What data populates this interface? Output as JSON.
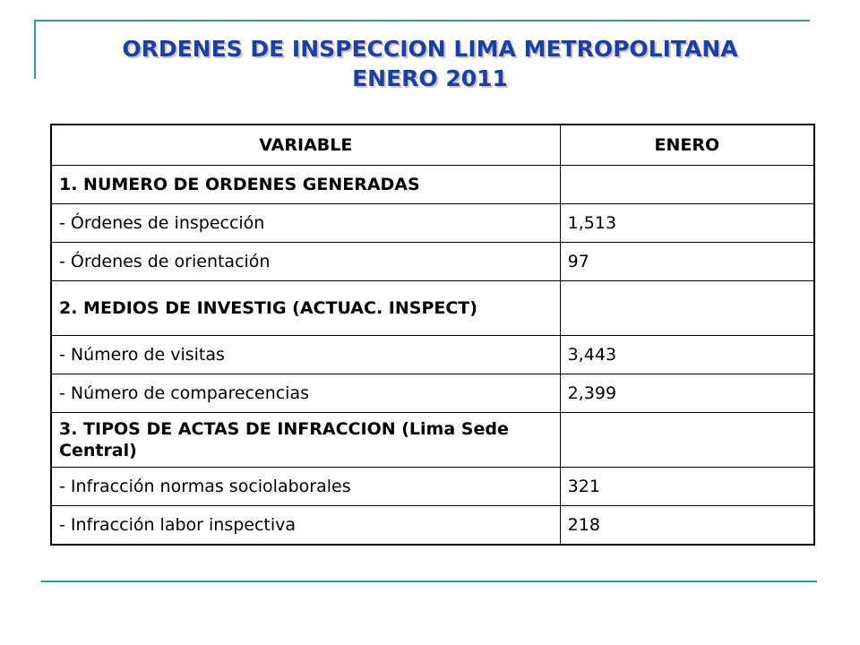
{
  "title": {
    "line1": "ORDENES DE INSPECCION LIMA METROPOLITANA",
    "line2": "ENERO 2011"
  },
  "table": {
    "headers": [
      "VARIABLE",
      "ENERO"
    ],
    "rows": [
      {
        "variable": "1. NUMERO DE ORDENES GENERADAS",
        "enero": "",
        "section": true
      },
      {
        "variable": "- Órdenes de inspección",
        "enero": "1,513",
        "section": false
      },
      {
        "variable": "- Órdenes de orientación",
        "enero": "97",
        "section": false
      },
      {
        "variable": "2. MEDIOS DE INVESTIG (ACTUAC. INSPECT)",
        "enero": "",
        "section": true
      },
      {
        "variable": "- Número de visitas",
        "enero": "3,443",
        "section": false
      },
      {
        "variable": "- Número de comparecencias",
        "enero": "2,399",
        "section": false
      },
      {
        "variable": "3. TIPOS DE ACTAS DE INFRACCION (Lima Sede Central)",
        "enero": "",
        "section": true
      },
      {
        "variable": "- Infracción normas sociolaborales",
        "enero": "321",
        "section": false
      },
      {
        "variable": "- Infracción labor inspectiva",
        "enero": "218",
        "section": false
      }
    ]
  },
  "colors": {
    "title": "#1a3fa8",
    "rules": "#2e9a9a"
  }
}
